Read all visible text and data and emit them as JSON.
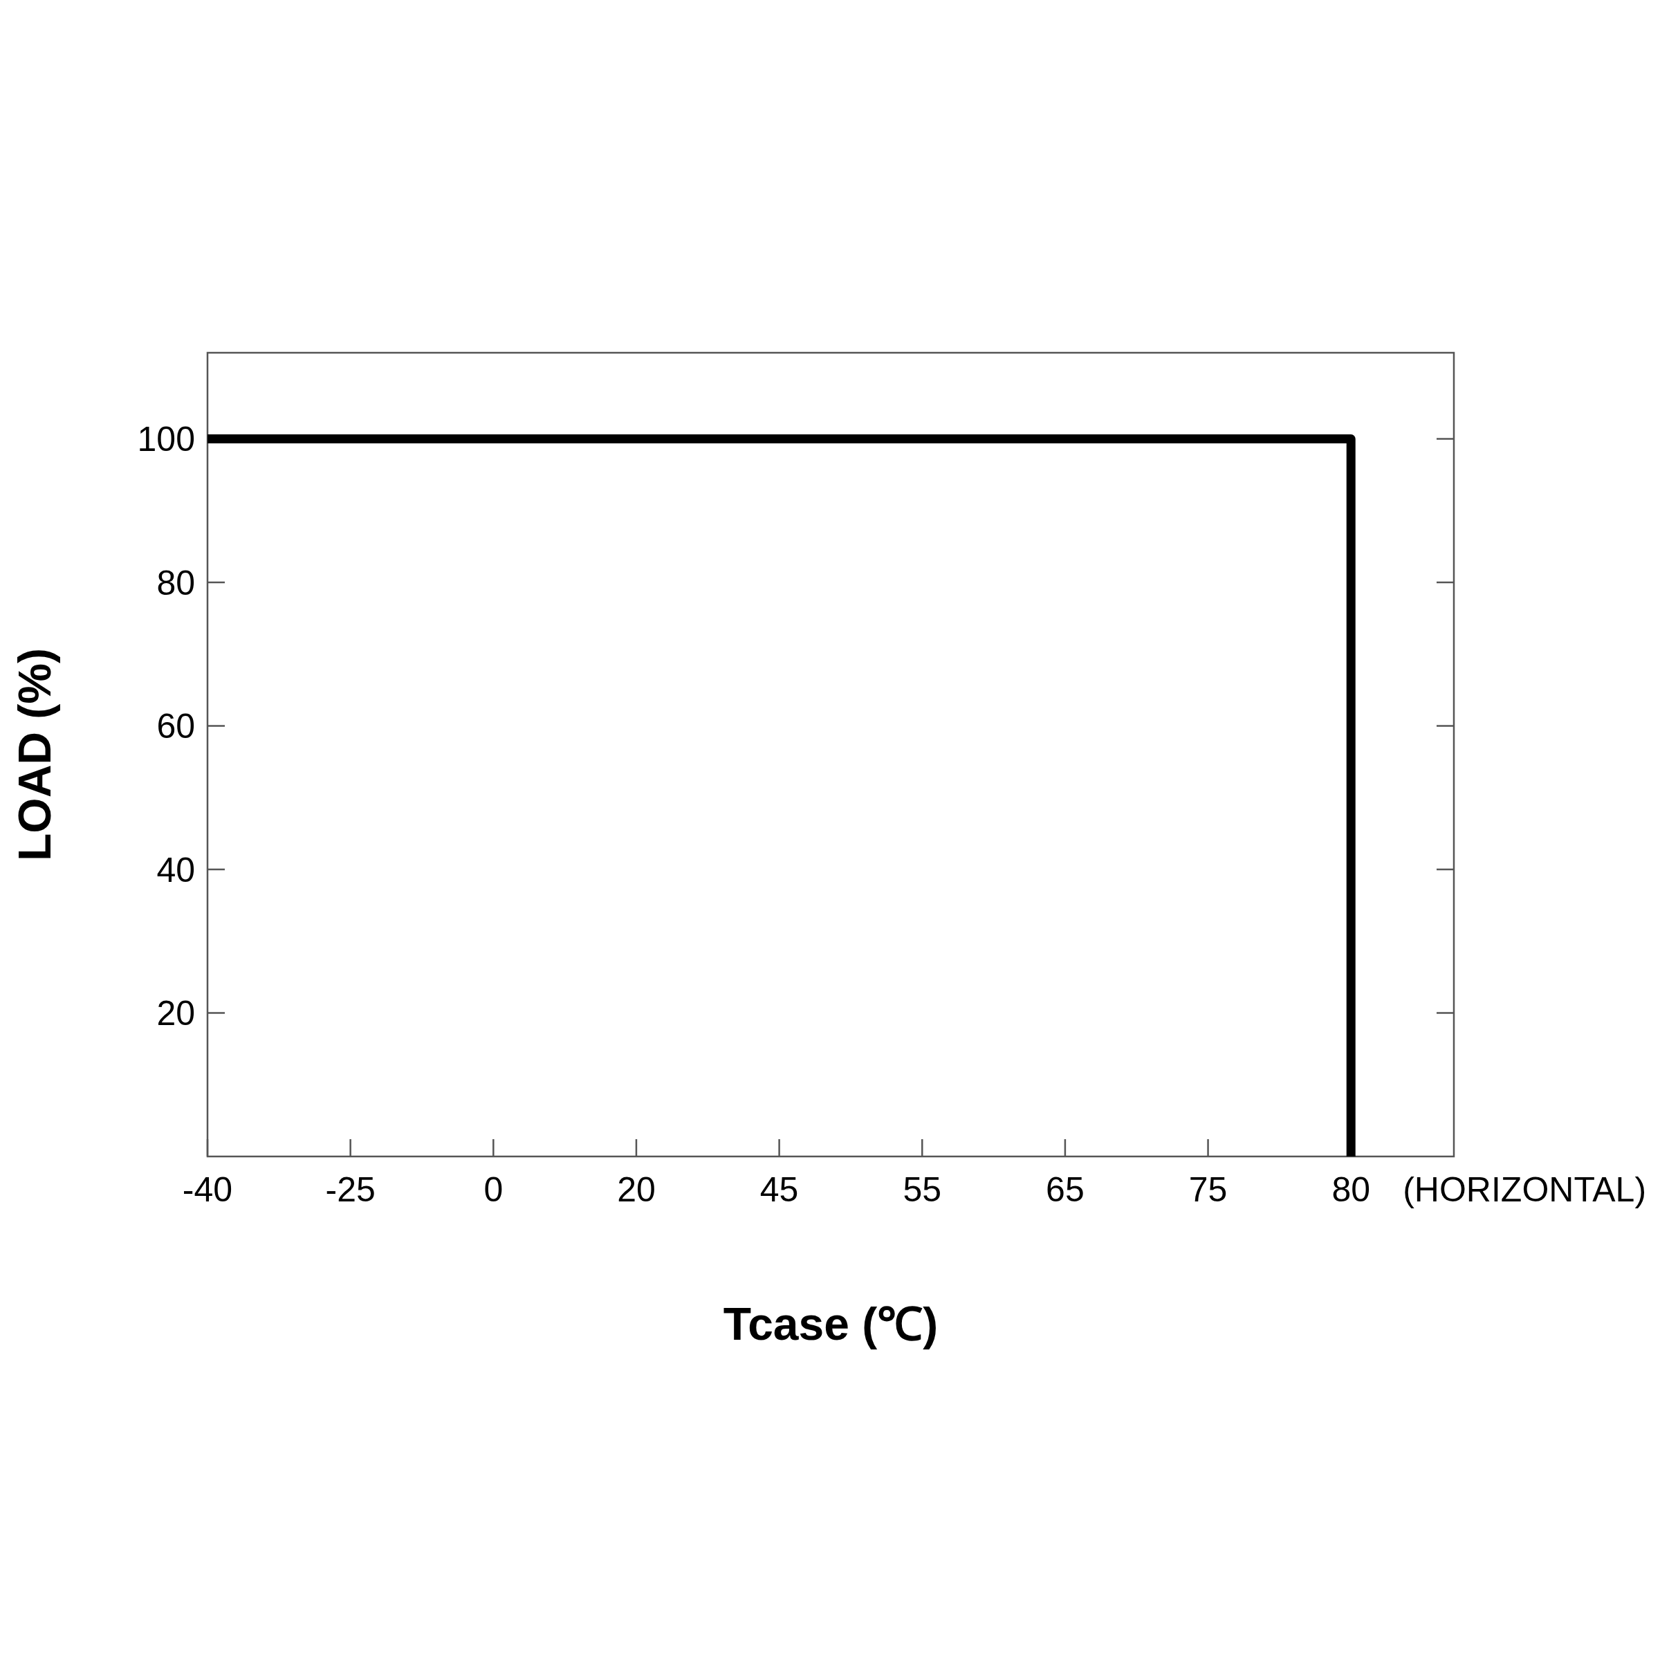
{
  "chart_data": {
    "type": "line",
    "xlabel": "Tcase (℃)",
    "ylabel": "LOAD (%)",
    "categories": [
      "-40",
      "-25",
      "0",
      "20",
      "45",
      "55",
      "65",
      "75",
      "80"
    ],
    "series": [
      {
        "color": "#000000",
        "x": [
          "-40",
          "80",
          "80"
        ],
        "values": [
          100,
          100,
          0
        ]
      }
    ],
    "ylim": [
      0,
      112
    ],
    "yticks": [
      20,
      40,
      60,
      80,
      100
    ],
    "annotations": [
      "(HORIZONTAL)"
    ],
    "grid": false,
    "marker": "none",
    "line_style": "solid"
  }
}
